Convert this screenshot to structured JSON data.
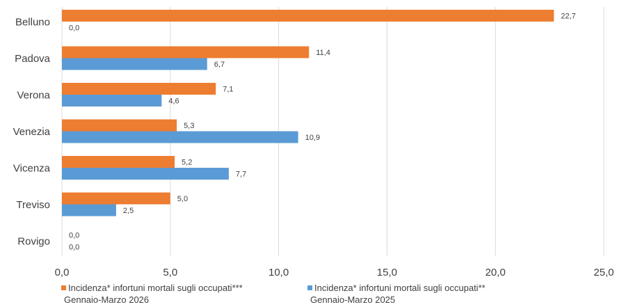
{
  "chart_data": {
    "type": "bar",
    "orientation": "horizontal",
    "categories": [
      "Belluno",
      "Padova",
      "Verona",
      "Venezia",
      "Vicenza",
      "Treviso",
      "Rovigo"
    ],
    "series": [
      {
        "name": "Incidenza* infortuni mortali sugli occupati*** Gennaio-Marzo 2026",
        "name_lines": [
          "Incidenza* infortuni mortali  sugli occupati***",
          "Gennaio-Marzo 2026"
        ],
        "color": "#ED7D31",
        "values": [
          22.7,
          11.4,
          7.1,
          5.3,
          5.2,
          5.0,
          0.0
        ],
        "labels": [
          "22,7",
          "11,4",
          "7,1",
          "5,3",
          "5,2",
          "5,0",
          "0,0"
        ]
      },
      {
        "name": "Incidenza* infortuni mortali sugli occupati** Gennaio-Marzo 2025",
        "name_lines": [
          "Incidenza* infortuni mortali  sugli occupati**",
          "Gennaio-Marzo 2025"
        ],
        "color": "#5B9BD5",
        "values": [
          0.0,
          6.7,
          4.6,
          10.9,
          7.7,
          2.5,
          0.0
        ],
        "labels": [
          "0,0",
          "6,7",
          "4,6",
          "10,9",
          "7,7",
          "2,5",
          "0,0"
        ]
      }
    ],
    "xlim": [
      0,
      25
    ],
    "x_ticks": [
      0,
      5,
      10,
      15,
      20,
      25
    ],
    "x_tick_labels": [
      "0,0",
      "5,0",
      "10,0",
      "15,0",
      "20,0",
      "25,0"
    ],
    "grid": "vertical",
    "legend_position": "bottom"
  }
}
